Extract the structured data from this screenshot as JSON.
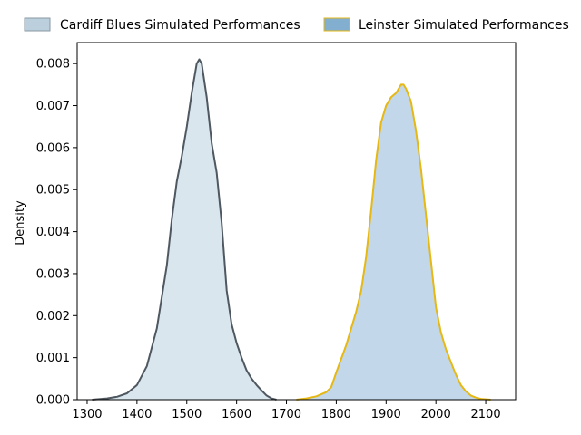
{
  "chart_data": {
    "type": "area",
    "title": "",
    "xlabel": "",
    "ylabel": "Density",
    "xlim": [
      1280,
      2160
    ],
    "ylim": [
      0,
      0.0085
    ],
    "x_ticks": [
      1300,
      1400,
      1500,
      1600,
      1700,
      1800,
      1900,
      2000,
      2100
    ],
    "y_ticks": [
      0.0,
      0.001,
      0.002,
      0.003,
      0.004,
      0.005,
      0.006,
      0.007,
      0.008
    ],
    "y_tick_labels": [
      "0.000",
      "0.001",
      "0.002",
      "0.003",
      "0.004",
      "0.005",
      "0.006",
      "0.007",
      "0.008"
    ],
    "grid": false,
    "legend_position": "top",
    "series": [
      {
        "name": "Cardiff Blues Simulated Performances",
        "fill_color": "#d9e6ee",
        "legend_fill": "#bccfdc",
        "line_color": "#4f5860",
        "points": [
          [
            1310,
            0.0
          ],
          [
            1340,
            3e-05
          ],
          [
            1360,
            7e-05
          ],
          [
            1380,
            0.00015
          ],
          [
            1400,
            0.00035
          ],
          [
            1420,
            0.0008
          ],
          [
            1440,
            0.0017
          ],
          [
            1460,
            0.0032
          ],
          [
            1470,
            0.0043
          ],
          [
            1480,
            0.0052
          ],
          [
            1490,
            0.0058
          ],
          [
            1500,
            0.0065
          ],
          [
            1510,
            0.0073
          ],
          [
            1520,
            0.008
          ],
          [
            1525,
            0.0081
          ],
          [
            1530,
            0.008
          ],
          [
            1540,
            0.0072
          ],
          [
            1550,
            0.0061
          ],
          [
            1560,
            0.0054
          ],
          [
            1570,
            0.0042
          ],
          [
            1580,
            0.0026
          ],
          [
            1590,
            0.0018
          ],
          [
            1600,
            0.00135
          ],
          [
            1610,
            0.001
          ],
          [
            1620,
            0.0007
          ],
          [
            1630,
            0.0005
          ],
          [
            1640,
            0.00035
          ],
          [
            1650,
            0.00022
          ],
          [
            1660,
            0.0001
          ],
          [
            1670,
            3e-05
          ],
          [
            1680,
            0.0
          ]
        ]
      },
      {
        "name": "Leinster Simulated Performances",
        "fill_color": "#c2d7ea",
        "legend_fill": "#82aed0",
        "line_color": "#e6b814",
        "points": [
          [
            1720,
            0.0
          ],
          [
            1740,
            3e-05
          ],
          [
            1760,
            8e-05
          ],
          [
            1780,
            0.00018
          ],
          [
            1790,
            0.0003
          ],
          [
            1800,
            0.00065
          ],
          [
            1820,
            0.0013
          ],
          [
            1840,
            0.0021
          ],
          [
            1850,
            0.0026
          ],
          [
            1860,
            0.0034
          ],
          [
            1870,
            0.0045
          ],
          [
            1880,
            0.0057
          ],
          [
            1890,
            0.0066
          ],
          [
            1900,
            0.007
          ],
          [
            1910,
            0.0072
          ],
          [
            1920,
            0.0073
          ],
          [
            1930,
            0.0075
          ],
          [
            1935,
            0.0075
          ],
          [
            1940,
            0.0074
          ],
          [
            1950,
            0.0071
          ],
          [
            1960,
            0.0064
          ],
          [
            1970,
            0.0055
          ],
          [
            1980,
            0.0044
          ],
          [
            1990,
            0.0033
          ],
          [
            2000,
            0.0022
          ],
          [
            2010,
            0.0016
          ],
          [
            2020,
            0.0012
          ],
          [
            2030,
            0.0009
          ],
          [
            2040,
            0.0006
          ],
          [
            2050,
            0.00035
          ],
          [
            2060,
            0.0002
          ],
          [
            2070,
            0.0001
          ],
          [
            2080,
            5e-05
          ],
          [
            2090,
            2e-05
          ],
          [
            2110,
            0.0
          ]
        ]
      }
    ]
  }
}
